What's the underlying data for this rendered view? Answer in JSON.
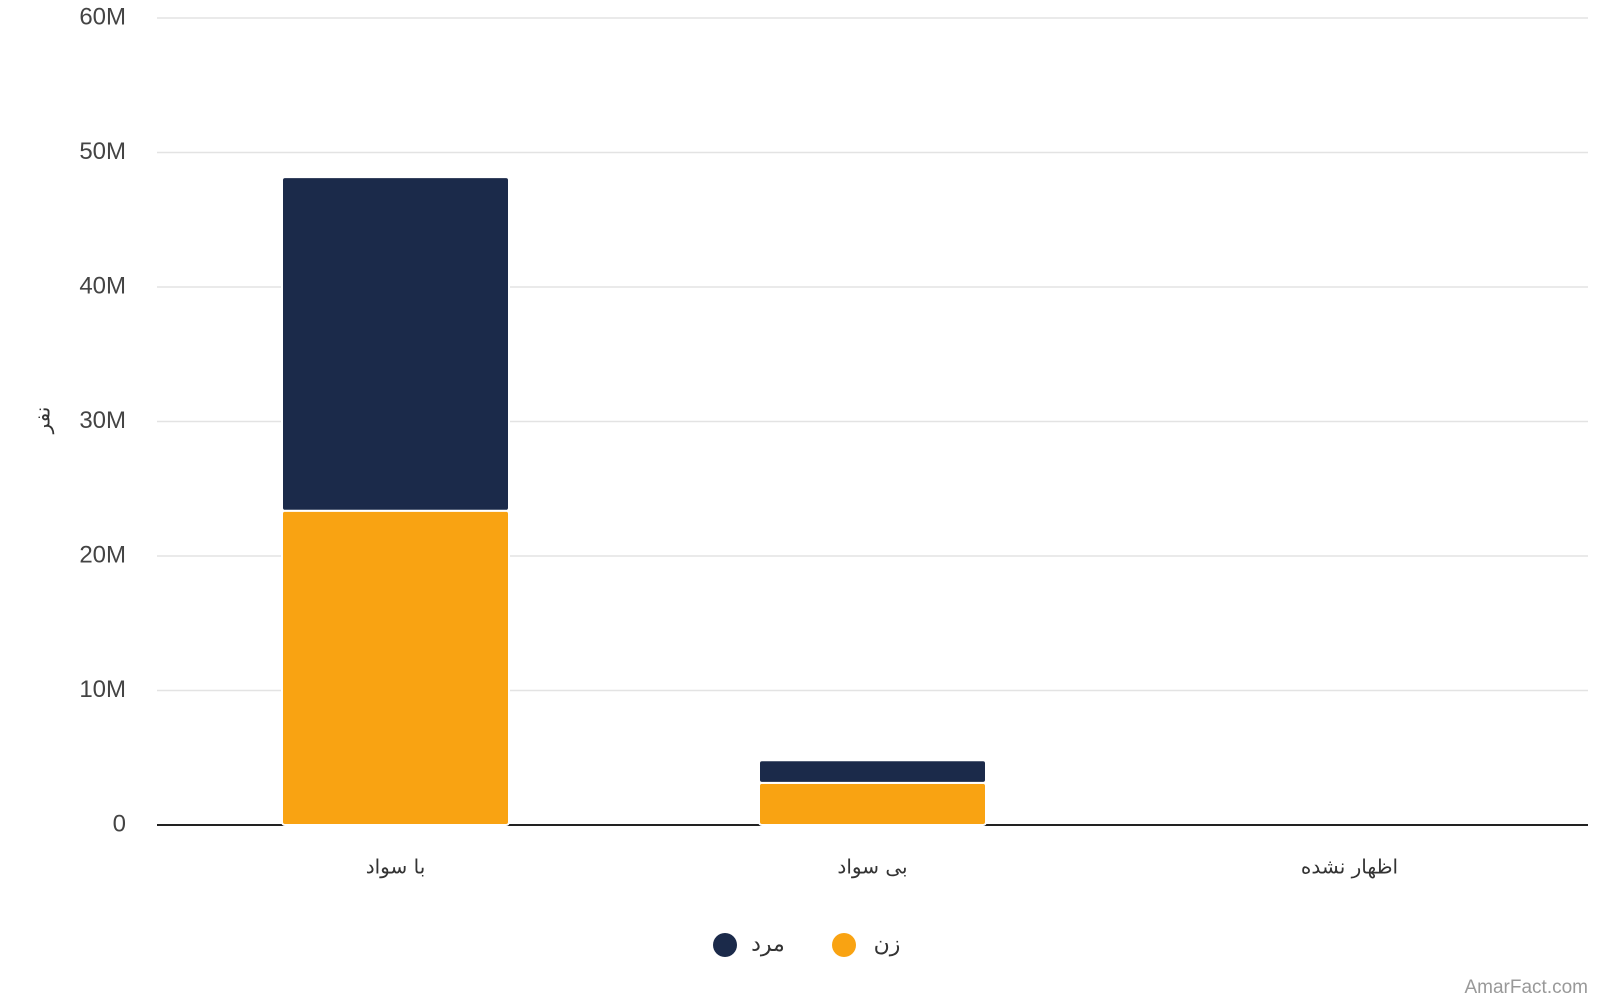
{
  "chart_data": {
    "type": "stacked_bar",
    "y_label": "نفر",
    "categories": [
      "با سواد",
      "بی سواد",
      "اظهار نشده"
    ],
    "series": [
      {
        "name": "زن",
        "color": "#f9a312",
        "values": [
          23360000,
          3130000,
          0
        ]
      },
      {
        "name": "مرد",
        "color": "#1b2a4a",
        "values": [
          24810000,
          1680000,
          0
        ]
      }
    ],
    "ylim": [
      0,
      60000000
    ],
    "yticks": [
      0,
      {
        "value": 10000000,
        "label": "10M"
      },
      {
        "value": 20000000,
        "label": "20M"
      },
      {
        "value": 30000000,
        "label": "30M"
      },
      {
        "value": 40000000,
        "label": "40M"
      },
      {
        "value": 50000000,
        "label": "50M"
      },
      {
        "value": 60000000,
        "label": "60M"
      }
    ],
    "grid": true,
    "legend": "bottom",
    "source": "AmarFact.com"
  }
}
